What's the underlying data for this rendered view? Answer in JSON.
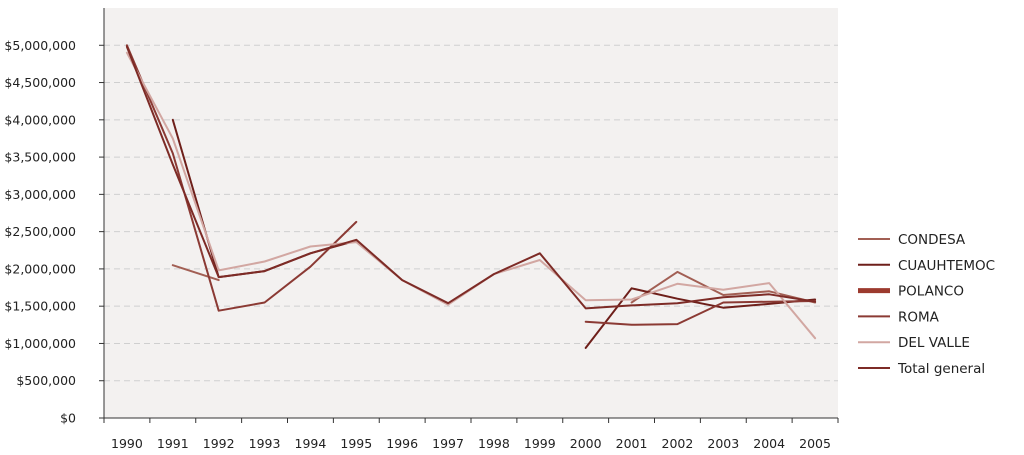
{
  "chart_data": {
    "type": "line",
    "title": "",
    "xlabel": "",
    "ylabel": "",
    "x": [
      "1990",
      "1991",
      "1992",
      "1993",
      "1994",
      "1995",
      "1996",
      "1997",
      "1998",
      "1999",
      "2000",
      "2001",
      "2002",
      "2003",
      "2004",
      "2005"
    ],
    "ylim": [
      0,
      5500000
    ],
    "yticks": [
      0,
      500000,
      1000000,
      1500000,
      2000000,
      2500000,
      3000000,
      3500000,
      4000000,
      4500000,
      5000000
    ],
    "ytick_labels": [
      "$0",
      "$500,000",
      "$1,000,000",
      "$1,500,000",
      "$2,000,000",
      "$2,500,000",
      "$3,000,000",
      "$3,500,000",
      "$4,000,000",
      "$4,500,000",
      "$5,000,000"
    ],
    "grid": "horizontal dashed",
    "plot_background": "#f3f1f0",
    "legend_position": "right",
    "series": [
      {
        "name": "CONDESA",
        "color": "#a25f54",
        "width": 2,
        "values": [
          null,
          2050000,
          1850000,
          null,
          null,
          null,
          null,
          null,
          null,
          null,
          null,
          1550000,
          1960000,
          1650000,
          1700000,
          1550000
        ]
      },
      {
        "name": "CUAUHTEMOC",
        "color": "#6e1f1a",
        "width": 2,
        "values": [
          null,
          4000000,
          1890000,
          1970000,
          2210000,
          2380000,
          null,
          null,
          null,
          null,
          940000,
          1740000,
          1600000,
          1480000,
          1530000,
          1590000
        ]
      },
      {
        "name": "POLANCO",
        "color": "#9c3a2e",
        "width": 5,
        "values": [
          null,
          null,
          null,
          null,
          null,
          null,
          null,
          null,
          null,
          null,
          null,
          null,
          null,
          null,
          null,
          null
        ]
      },
      {
        "name": "ROMA",
        "color": "#8b3a34",
        "width": 2,
        "values": [
          5000000,
          3550000,
          1440000,
          1550000,
          2030000,
          2630000,
          null,
          null,
          null,
          null,
          1290000,
          1250000,
          1260000,
          1550000,
          1560000,
          1570000
        ]
      },
      {
        "name": "DEL VALLE",
        "color": "#d2a7a2",
        "width": 2,
        "values": [
          4900000,
          3750000,
          1980000,
          2100000,
          2300000,
          2360000,
          1850000,
          1520000,
          1930000,
          2120000,
          1580000,
          1590000,
          1800000,
          1720000,
          1810000,
          1070000
        ]
      },
      {
        "name": "Total general",
        "color": "#7d2b26",
        "width": 2,
        "values": [
          4980000,
          3400000,
          1890000,
          1970000,
          2210000,
          2390000,
          1850000,
          1540000,
          1930000,
          2210000,
          1470000,
          1510000,
          1540000,
          1620000,
          1660000,
          1560000
        ]
      }
    ]
  }
}
